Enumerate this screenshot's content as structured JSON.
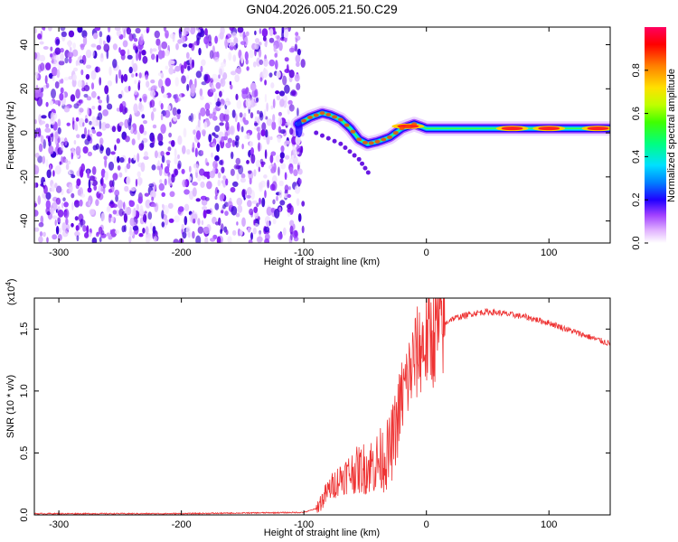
{
  "title": "GN04.2026.005.21.50.C29",
  "chart_data": [
    {
      "type": "heatmap",
      "xlabel": "Height of straight line (km)",
      "ylabel": "Frequency (Hz)",
      "xlim": [
        -320,
        150
      ],
      "ylim": [
        -50,
        48
      ],
      "xticks": [
        -300,
        -200,
        -100,
        0,
        100
      ],
      "yticks": [
        -40,
        -20,
        0,
        20,
        40
      ],
      "colorbar": {
        "label": "Normalized spectral amplitude",
        "range": [
          0,
          1
        ],
        "ticks": [
          0.0,
          0.2,
          0.4,
          0.6,
          0.8
        ],
        "colors": [
          "#ffffff",
          "#e0b0ff",
          "#a040ff",
          "#2000ff",
          "#0080ff",
          "#00e0ff",
          "#00ff80",
          "#40ff00",
          "#c0ff00",
          "#ffe000",
          "#ff8000",
          "#ff0000",
          "#ff0060"
        ]
      },
      "ridge": {
        "x": [
          -105,
          -95,
          -85,
          -78,
          -70,
          -62,
          -55,
          -48,
          -40,
          -30,
          -20,
          -10,
          -5,
          0,
          20,
          60,
          100,
          150
        ],
        "y": [
          4,
          7,
          9,
          8,
          6,
          2,
          -3,
          -5,
          -4,
          -2,
          2,
          4,
          3,
          2,
          2,
          2,
          2,
          2
        ],
        "peak_x": [
          -15,
          70,
          100,
          140
        ]
      },
      "branch": {
        "x": [
          -90,
          -70,
          -55,
          -45
        ],
        "y": [
          0,
          -5,
          -12,
          -20
        ]
      }
    },
    {
      "type": "line",
      "xlabel": "Height of straight line (km)",
      "ylabel": "SNR (10 * v/v)",
      "y_exponent": "(x10",
      "y_exponent_power": "4",
      "xlim": [
        -320,
        150
      ],
      "ylim": [
        0,
        1.75
      ],
      "xticks": [
        -300,
        -200,
        -100,
        0,
        100
      ],
      "yticks": [
        0.0,
        0.5,
        1.0,
        1.5
      ],
      "series": [
        {
          "name": "SNR",
          "color": "#ee3333",
          "x": [
            -320,
            -200,
            -100,
            -90,
            -85,
            -80,
            -70,
            -60,
            -50,
            -40,
            -30,
            -25,
            -20,
            -15,
            -10,
            -5,
            0,
            10,
            20,
            40,
            50,
            60,
            80,
            100,
            120,
            150
          ],
          "y": [
            0.01,
            0.01,
            0.02,
            0.05,
            0.12,
            0.2,
            0.3,
            0.35,
            0.38,
            0.42,
            0.5,
            0.7,
            0.95,
            1.1,
            1.25,
            1.35,
            1.4,
            1.5,
            1.58,
            1.63,
            1.64,
            1.63,
            1.6,
            1.55,
            1.48,
            1.38
          ]
        }
      ]
    }
  ]
}
